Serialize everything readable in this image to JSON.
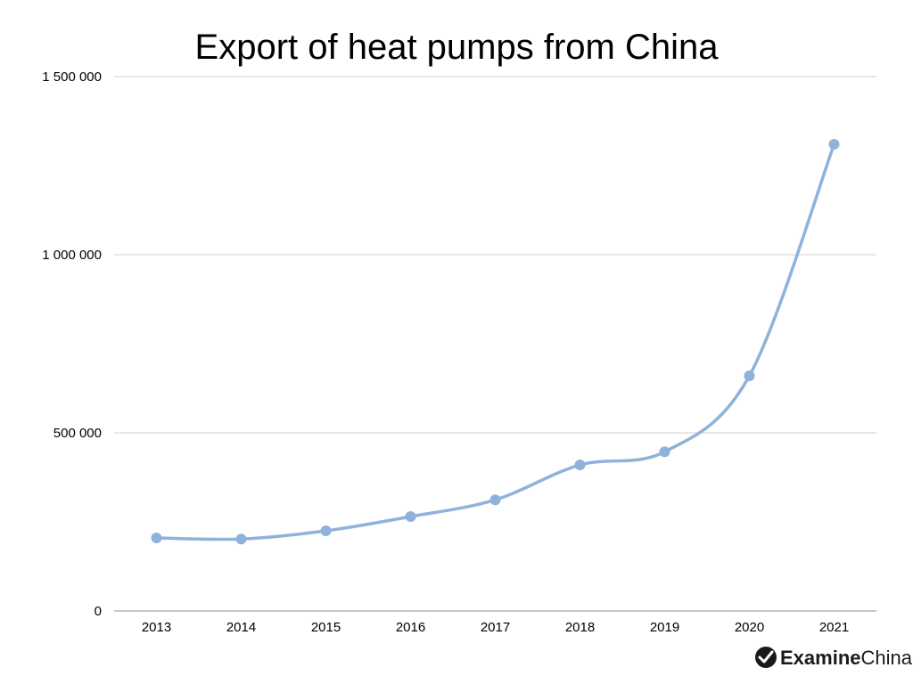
{
  "chart_data": {
    "type": "line",
    "title": "Export of heat pumps from China",
    "xlabel": "",
    "ylabel": "",
    "categories": [
      "2013",
      "2014",
      "2015",
      "2016",
      "2017",
      "2018",
      "2019",
      "2020",
      "2021"
    ],
    "series": [
      {
        "values": [
          205000,
          202000,
          225000,
          265000,
          312000,
          410000,
          447000,
          660000,
          1310000
        ],
        "color": "#8fb2db"
      }
    ],
    "ylim": [
      0,
      1500000
    ],
    "yticks": [
      0,
      500000,
      1000000,
      1500000
    ],
    "ytick_labels": [
      "0",
      "500 000",
      "1 000 000",
      "1 500 000"
    ],
    "grid": true,
    "smooth": true,
    "markers": true
  },
  "branding": {
    "name_part1": "Examine",
    "name_part2": "China",
    "icon": "check-circle-icon"
  }
}
